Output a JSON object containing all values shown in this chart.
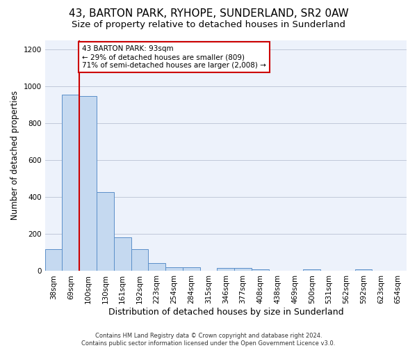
{
  "title": "43, BARTON PARK, RYHOPE, SUNDERLAND, SR2 0AW",
  "subtitle": "Size of property relative to detached houses in Sunderland",
  "xlabel": "Distribution of detached houses by size in Sunderland",
  "ylabel": "Number of detached properties",
  "categories": [
    "38sqm",
    "69sqm",
    "100sqm",
    "130sqm",
    "161sqm",
    "192sqm",
    "223sqm",
    "254sqm",
    "284sqm",
    "315sqm",
    "346sqm",
    "377sqm",
    "408sqm",
    "438sqm",
    "469sqm",
    "500sqm",
    "531sqm",
    "562sqm",
    "592sqm",
    "623sqm",
    "654sqm"
  ],
  "values": [
    120,
    955,
    948,
    428,
    182,
    120,
    43,
    20,
    20,
    0,
    15,
    15,
    10,
    0,
    0,
    8,
    0,
    0,
    8,
    0,
    0
  ],
  "bar_color": "#c5d9f0",
  "bar_edge_color": "#5b8fc9",
  "vline_x_bar_index": 2,
  "marker_label": "43 BARTON PARK: 93sqm",
  "smaller_pct": "29% of detached houses are smaller (809)",
  "larger_pct": "71% of semi-detached houses are larger (2,008)",
  "annotation_box_color": "#ffffff",
  "annotation_box_edge": "#cc0000",
  "vline_color": "#cc0000",
  "ylim": [
    0,
    1250
  ],
  "yticks": [
    0,
    200,
    400,
    600,
    800,
    1000,
    1200
  ],
  "footer": "Contains HM Land Registry data © Crown copyright and database right 2024.\nContains public sector information licensed under the Open Government Licence v3.0.",
  "bg_color": "#edf2fb",
  "title_fontsize": 11,
  "subtitle_fontsize": 9.5,
  "xlabel_fontsize": 9,
  "ylabel_fontsize": 8.5,
  "tick_fontsize": 7.5,
  "footer_fontsize": 6,
  "annotation_fontsize": 7.5
}
